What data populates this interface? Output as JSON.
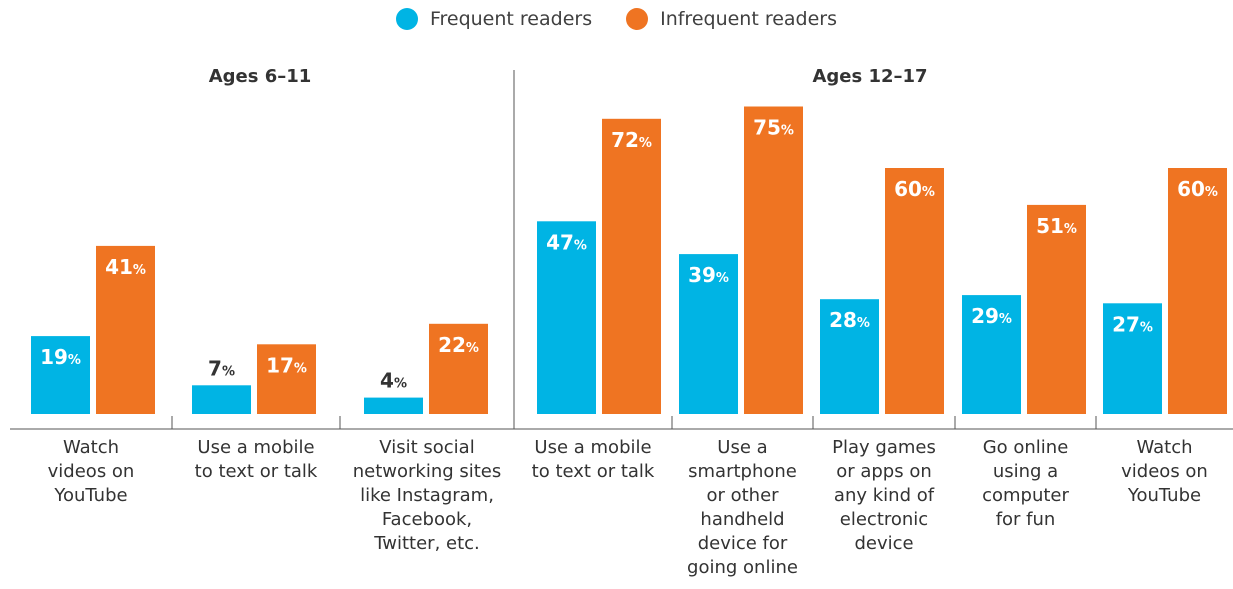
{
  "legend": {
    "series1": "Frequent readers",
    "series2": "Infrequent readers"
  },
  "colors": {
    "frequent": "#00b4e4",
    "infrequent": "#ef7422",
    "axis": "#555555",
    "label_dark": "#333333",
    "label_light": "#ffffff"
  },
  "groups": {
    "g1": "Ages 6–11",
    "g2": "Ages 12–17"
  },
  "chart_data": {
    "type": "bar",
    "categories": [
      "Watch\nvideos on\nYouTube",
      "Use a mobile\nto text or talk",
      "Visit social\nnetworking sites\nlike Instagram,\nFacebook,\nTwitter, etc.",
      "Use a mobile\nto text or talk",
      "Use a\nsmartphone\nor other\nhandheld\ndevice for\ngoing online",
      "Play games\nor apps on\nany kind of\nelectronic\ndevice",
      "Go online\nusing a\ncomputer\nfor fun",
      "Watch\nvideos on\nYouTube"
    ],
    "category_groups": [
      "Ages 6–11",
      "Ages 6–11",
      "Ages 6–11",
      "Ages 12–17",
      "Ages 12–17",
      "Ages 12–17",
      "Ages 12–17",
      "Ages 12–17"
    ],
    "series": [
      {
        "name": "Frequent readers",
        "values": [
          19,
          7,
          4,
          47,
          39,
          28,
          29,
          27
        ]
      },
      {
        "name": "Infrequent readers",
        "values": [
          41,
          17,
          22,
          72,
          75,
          60,
          51,
          60
        ]
      }
    ],
    "data_labels_suffix": "%",
    "ylim": [
      0,
      80
    ],
    "legend_position": "top-center",
    "grid": false,
    "xlabel": "",
    "ylabel": ""
  }
}
